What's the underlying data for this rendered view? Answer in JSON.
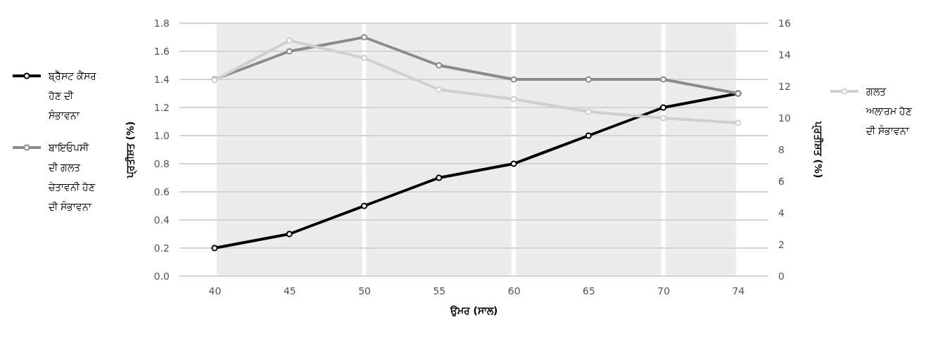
{
  "chart_data": {
    "type": "line",
    "xlabel": "ਉਮਰ (ਸਾਲ)",
    "ylabel": "ਪ੍ਰਤੀਸ਼ਤ (%)",
    "y2label": "ਪ੍ਰਤੀਸ਼ਤ (%)",
    "categories": [
      "40",
      "45",
      "50",
      "55",
      "60",
      "65",
      "70",
      "74"
    ],
    "series": [
      {
        "name": "ਬ੍ਰੈੱਸਟ ਕੈਂਸਰ ਹੋਣ ਦੀ ਸੰਭਾਵਨਾ",
        "color": "#000000",
        "values": [
          0.2,
          0.3,
          0.5,
          0.7,
          0.8,
          1.0,
          1.2,
          1.3
        ]
      },
      {
        "name": "ਬਾਇਓਪਸੀ ਦੀ ਗਲਤ ਚੇਤਾਵਨੀ ਹੋਣ ਦੀ ਸੰਭਾਵਨਾ",
        "color": "#8a8a8c",
        "values": [
          1.4,
          1.6,
          1.7,
          1.5,
          1.4,
          1.4,
          1.4,
          1.3
        ]
      },
      {
        "name": "ਗਲਤ ਅਲਾਰਮ ਹੋਣ ਦੀ ਸੰਭਾਵਨਾ",
        "color": "#cfcfcf",
        "axis": "y2",
        "values": [
          12.4,
          14.9,
          13.8,
          11.8,
          11.2,
          10.4,
          10.0,
          9.7
        ]
      }
    ],
    "ylim": [
      0,
      1.8
    ],
    "yticks": [
      {
        "value": 0,
        "label": "0.0"
      },
      {
        "value": 0.2,
        "label": "0.2"
      },
      {
        "value": 0.4,
        "label": "0.4"
      },
      {
        "value": 0.6,
        "label": "0.6"
      },
      {
        "value": 0.8,
        "label": "0.8"
      },
      {
        "value": 1.0,
        "label": "1.0"
      },
      {
        "value": 1.2,
        "label": "1.2"
      },
      {
        "value": 1.4,
        "label": "1.4"
      },
      {
        "value": 1.6,
        "label": "1.6"
      },
      {
        "value": 1.8,
        "label": "1.8"
      }
    ],
    "y2lim": [
      0,
      16
    ],
    "y2ticks": [
      0,
      2,
      4,
      6,
      8,
      10,
      12,
      14,
      16
    ],
    "bands": [
      {
        "axis": "x",
        "from": "40",
        "to": "50",
        "color": "#ebeceb"
      },
      {
        "axis": "x",
        "from": "50",
        "to": "60",
        "color": "#ebeceb"
      },
      {
        "axis": "x",
        "from": "60",
        "to": "70",
        "color": "#ebeceb"
      },
      {
        "axis": "x",
        "from": "70",
        "to": "74",
        "color": "#ebeceb"
      }
    ],
    "grid": "y",
    "legend": "left",
    "marker": "circle",
    "line_style": "solid"
  }
}
